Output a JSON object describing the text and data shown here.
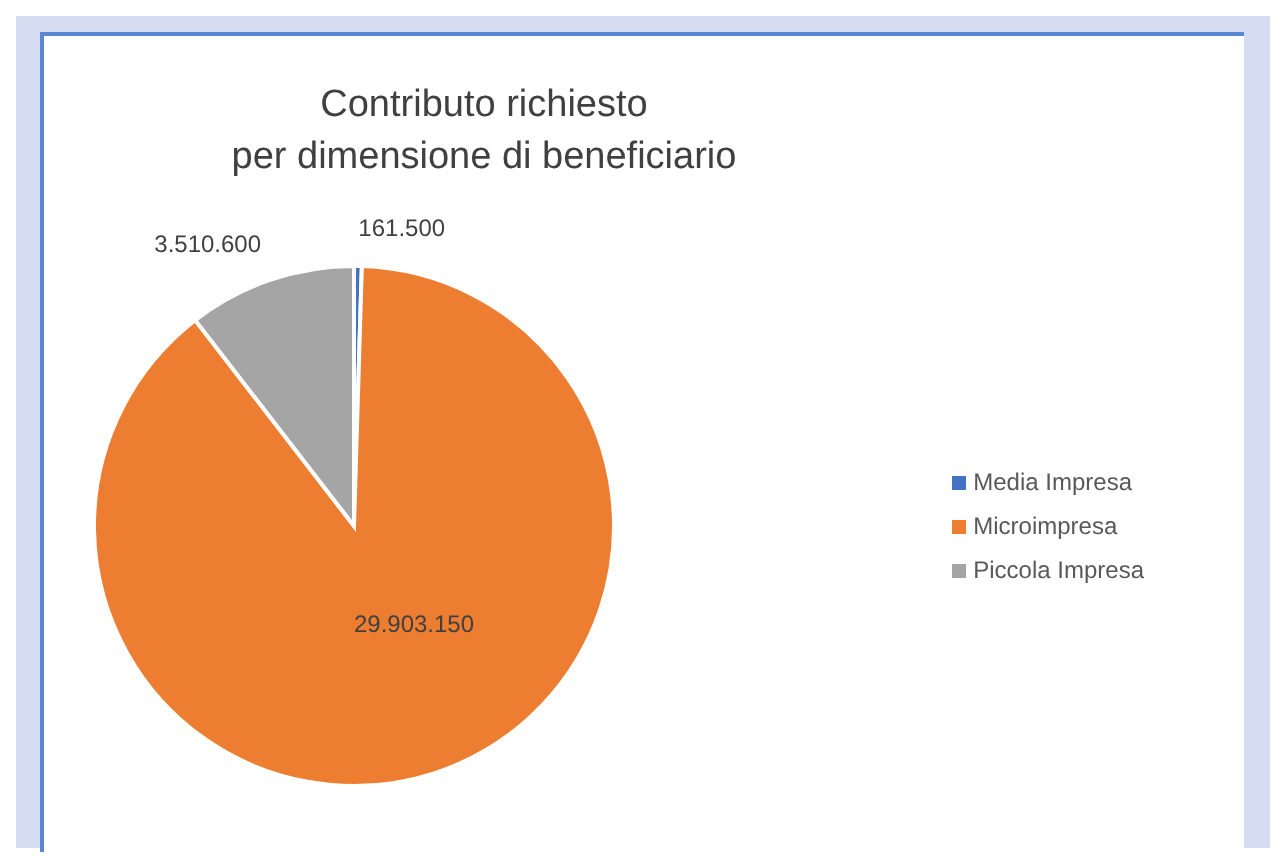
{
  "chart_data": {
    "type": "pie",
    "title": "Contributo richiesto\nper dimensione di beneficiario",
    "categories": [
      "Media Impresa",
      "Microimpresa",
      "Piccola Impresa"
    ],
    "values": [
      161500,
      29903150,
      3510600
    ],
    "colors": [
      "#4472c4",
      "#ed7d31",
      "#a5a5a5"
    ],
    "value_labels": [
      "161.500",
      "29.903.150",
      "3.510.600"
    ],
    "legend": "right"
  }
}
